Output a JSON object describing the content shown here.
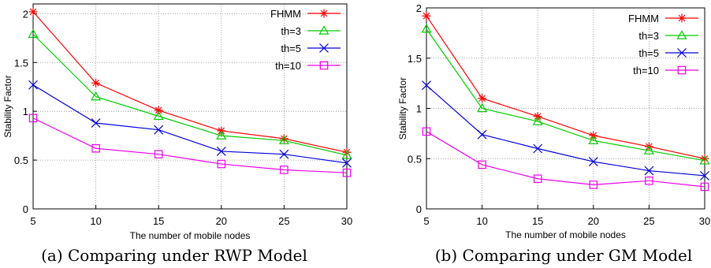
{
  "colors": {
    "FHMM": "#ff0000",
    "th=3": "#00cc00",
    "th=5": "#0000dd",
    "th=10": "#ee00ee"
  },
  "chart_data": [
    {
      "type": "line",
      "caption": "(a) Comparing under RWP Model",
      "xlabel": "The number of mobile nodes",
      "ylabel": "Stability Factor",
      "x": [
        5,
        10,
        15,
        20,
        25,
        30
      ],
      "xlim": [
        5,
        30
      ],
      "ylim": [
        0,
        2.1
      ],
      "yticks": [
        0,
        0.5,
        1,
        1.5,
        2
      ],
      "yticklabels": [
        "0",
        "0.5",
        "1",
        "1.5",
        "2"
      ],
      "xticklabels": [
        "5",
        "10",
        "15",
        "20",
        "25",
        "30"
      ],
      "grid": true,
      "legend": "top-right",
      "series": [
        {
          "name": "FHMM",
          "marker": "asterisk",
          "values": [
            2.02,
            1.29,
            1.01,
            0.8,
            0.72,
            0.58
          ]
        },
        {
          "name": "th=3",
          "marker": "triangle",
          "values": [
            1.79,
            1.15,
            0.95,
            0.75,
            0.7,
            0.55
          ]
        },
        {
          "name": "th=5",
          "marker": "cross",
          "values": [
            1.27,
            0.88,
            0.81,
            0.59,
            0.56,
            0.47
          ]
        },
        {
          "name": "th=10",
          "marker": "square",
          "values": [
            0.93,
            0.62,
            0.56,
            0.46,
            0.4,
            0.37
          ]
        }
      ]
    },
    {
      "type": "line",
      "caption": "(b) Comparing under GM Model",
      "xlabel": "The number of mobile nodes",
      "ylabel": "Stability Factor",
      "x": [
        5,
        10,
        15,
        20,
        25,
        30
      ],
      "xlim": [
        5,
        30
      ],
      "ylim": [
        0,
        2
      ],
      "yticks": [
        0,
        0.5,
        1,
        1.5,
        2
      ],
      "yticklabels": [
        "0",
        "0.5",
        "1",
        "1.5",
        "2"
      ],
      "xticklabels": [
        "5",
        "10",
        "15",
        "20",
        "25",
        "30"
      ],
      "grid": true,
      "legend": "top-right",
      "series": [
        {
          "name": "FHMM",
          "marker": "asterisk",
          "values": [
            1.92,
            1.1,
            0.92,
            0.73,
            0.62,
            0.5
          ]
        },
        {
          "name": "th=3",
          "marker": "triangle",
          "values": [
            1.79,
            1.0,
            0.87,
            0.68,
            0.58,
            0.48
          ]
        },
        {
          "name": "th=5",
          "marker": "cross",
          "values": [
            1.23,
            0.74,
            0.6,
            0.47,
            0.38,
            0.33
          ]
        },
        {
          "name": "th=10",
          "marker": "square",
          "values": [
            0.77,
            0.44,
            0.3,
            0.24,
            0.28,
            0.22
          ]
        }
      ]
    }
  ]
}
